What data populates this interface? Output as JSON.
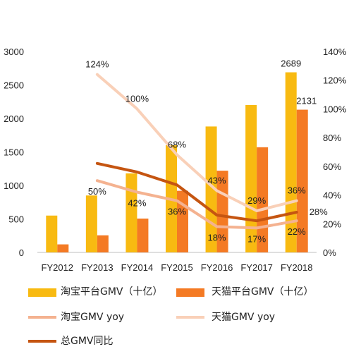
{
  "chart_data": {
    "type": "bar",
    "categories": [
      "FY2012",
      "FY2013",
      "FY2014",
      "FY2015",
      "FY2016",
      "FY2017",
      "FY2018"
    ],
    "series": [
      {
        "name": "淘宝平台GMV（十亿）",
        "kind": "bar",
        "axis": "left",
        "color": "#F8BA11",
        "values": [
          550,
          850,
          1180,
          1600,
          1880,
          2200,
          2689
        ]
      },
      {
        "name": "天猫平台GMV（十亿）",
        "kind": "bar",
        "axis": "left",
        "color": "#F47A24",
        "values": [
          120,
          255,
          505,
          920,
          1220,
          1570,
          2131
        ]
      },
      {
        "name": "淘宝GMV yoy",
        "kind": "line",
        "axis": "right",
        "color": "#F4B290",
        "values": [
          null,
          0.5,
          0.42,
          0.36,
          0.18,
          0.17,
          0.22
        ]
      },
      {
        "name": "天猫GMV yoy",
        "kind": "line",
        "axis": "right",
        "color": "#F9D0B8",
        "values": [
          null,
          1.24,
          1.0,
          0.68,
          0.43,
          0.29,
          0.36
        ]
      },
      {
        "name": "总GMV同比",
        "kind": "line",
        "axis": "right",
        "color": "#C55511",
        "values": [
          null,
          0.62,
          0.56,
          0.47,
          0.26,
          0.22,
          0.28
        ]
      }
    ],
    "left_axis": {
      "ylim": [
        0,
        3000
      ],
      "ticks": [
        "0",
        "500",
        "1000",
        "1500",
        "2000",
        "2500",
        "3000"
      ]
    },
    "right_axis": {
      "ylim": [
        0,
        1.4
      ],
      "ticks": [
        "0%",
        "20%",
        "40%",
        "60%",
        "80%",
        "100%",
        "120%",
        "140%"
      ]
    },
    "data_labels": [
      {
        "text": "124%",
        "series": 3,
        "cat": 1
      },
      {
        "text": "100%",
        "series": 3,
        "cat": 2
      },
      {
        "text": "68%",
        "series": 3,
        "cat": 3
      },
      {
        "text": "43%",
        "series": 3,
        "cat": 4
      },
      {
        "text": "29%",
        "series": 3,
        "cat": 5
      },
      {
        "text": "36%",
        "series": 3,
        "cat": 6
      },
      {
        "text": "50%",
        "series": 2,
        "cat": 1
      },
      {
        "text": "42%",
        "series": 2,
        "cat": 2
      },
      {
        "text": "36%",
        "series": 2,
        "cat": 3
      },
      {
        "text": "18%",
        "series": 2,
        "cat": 4
      },
      {
        "text": "17%",
        "series": 2,
        "cat": 5
      },
      {
        "text": "22%",
        "series": 2,
        "cat": 6
      },
      {
        "text": "28%",
        "series": 4,
        "cat": 6
      },
      {
        "text": "2689",
        "series": 0,
        "cat": 6
      },
      {
        "text": "2131",
        "series": 1,
        "cat": 6
      }
    ],
    "grid": false,
    "legend_position": "bottom"
  }
}
